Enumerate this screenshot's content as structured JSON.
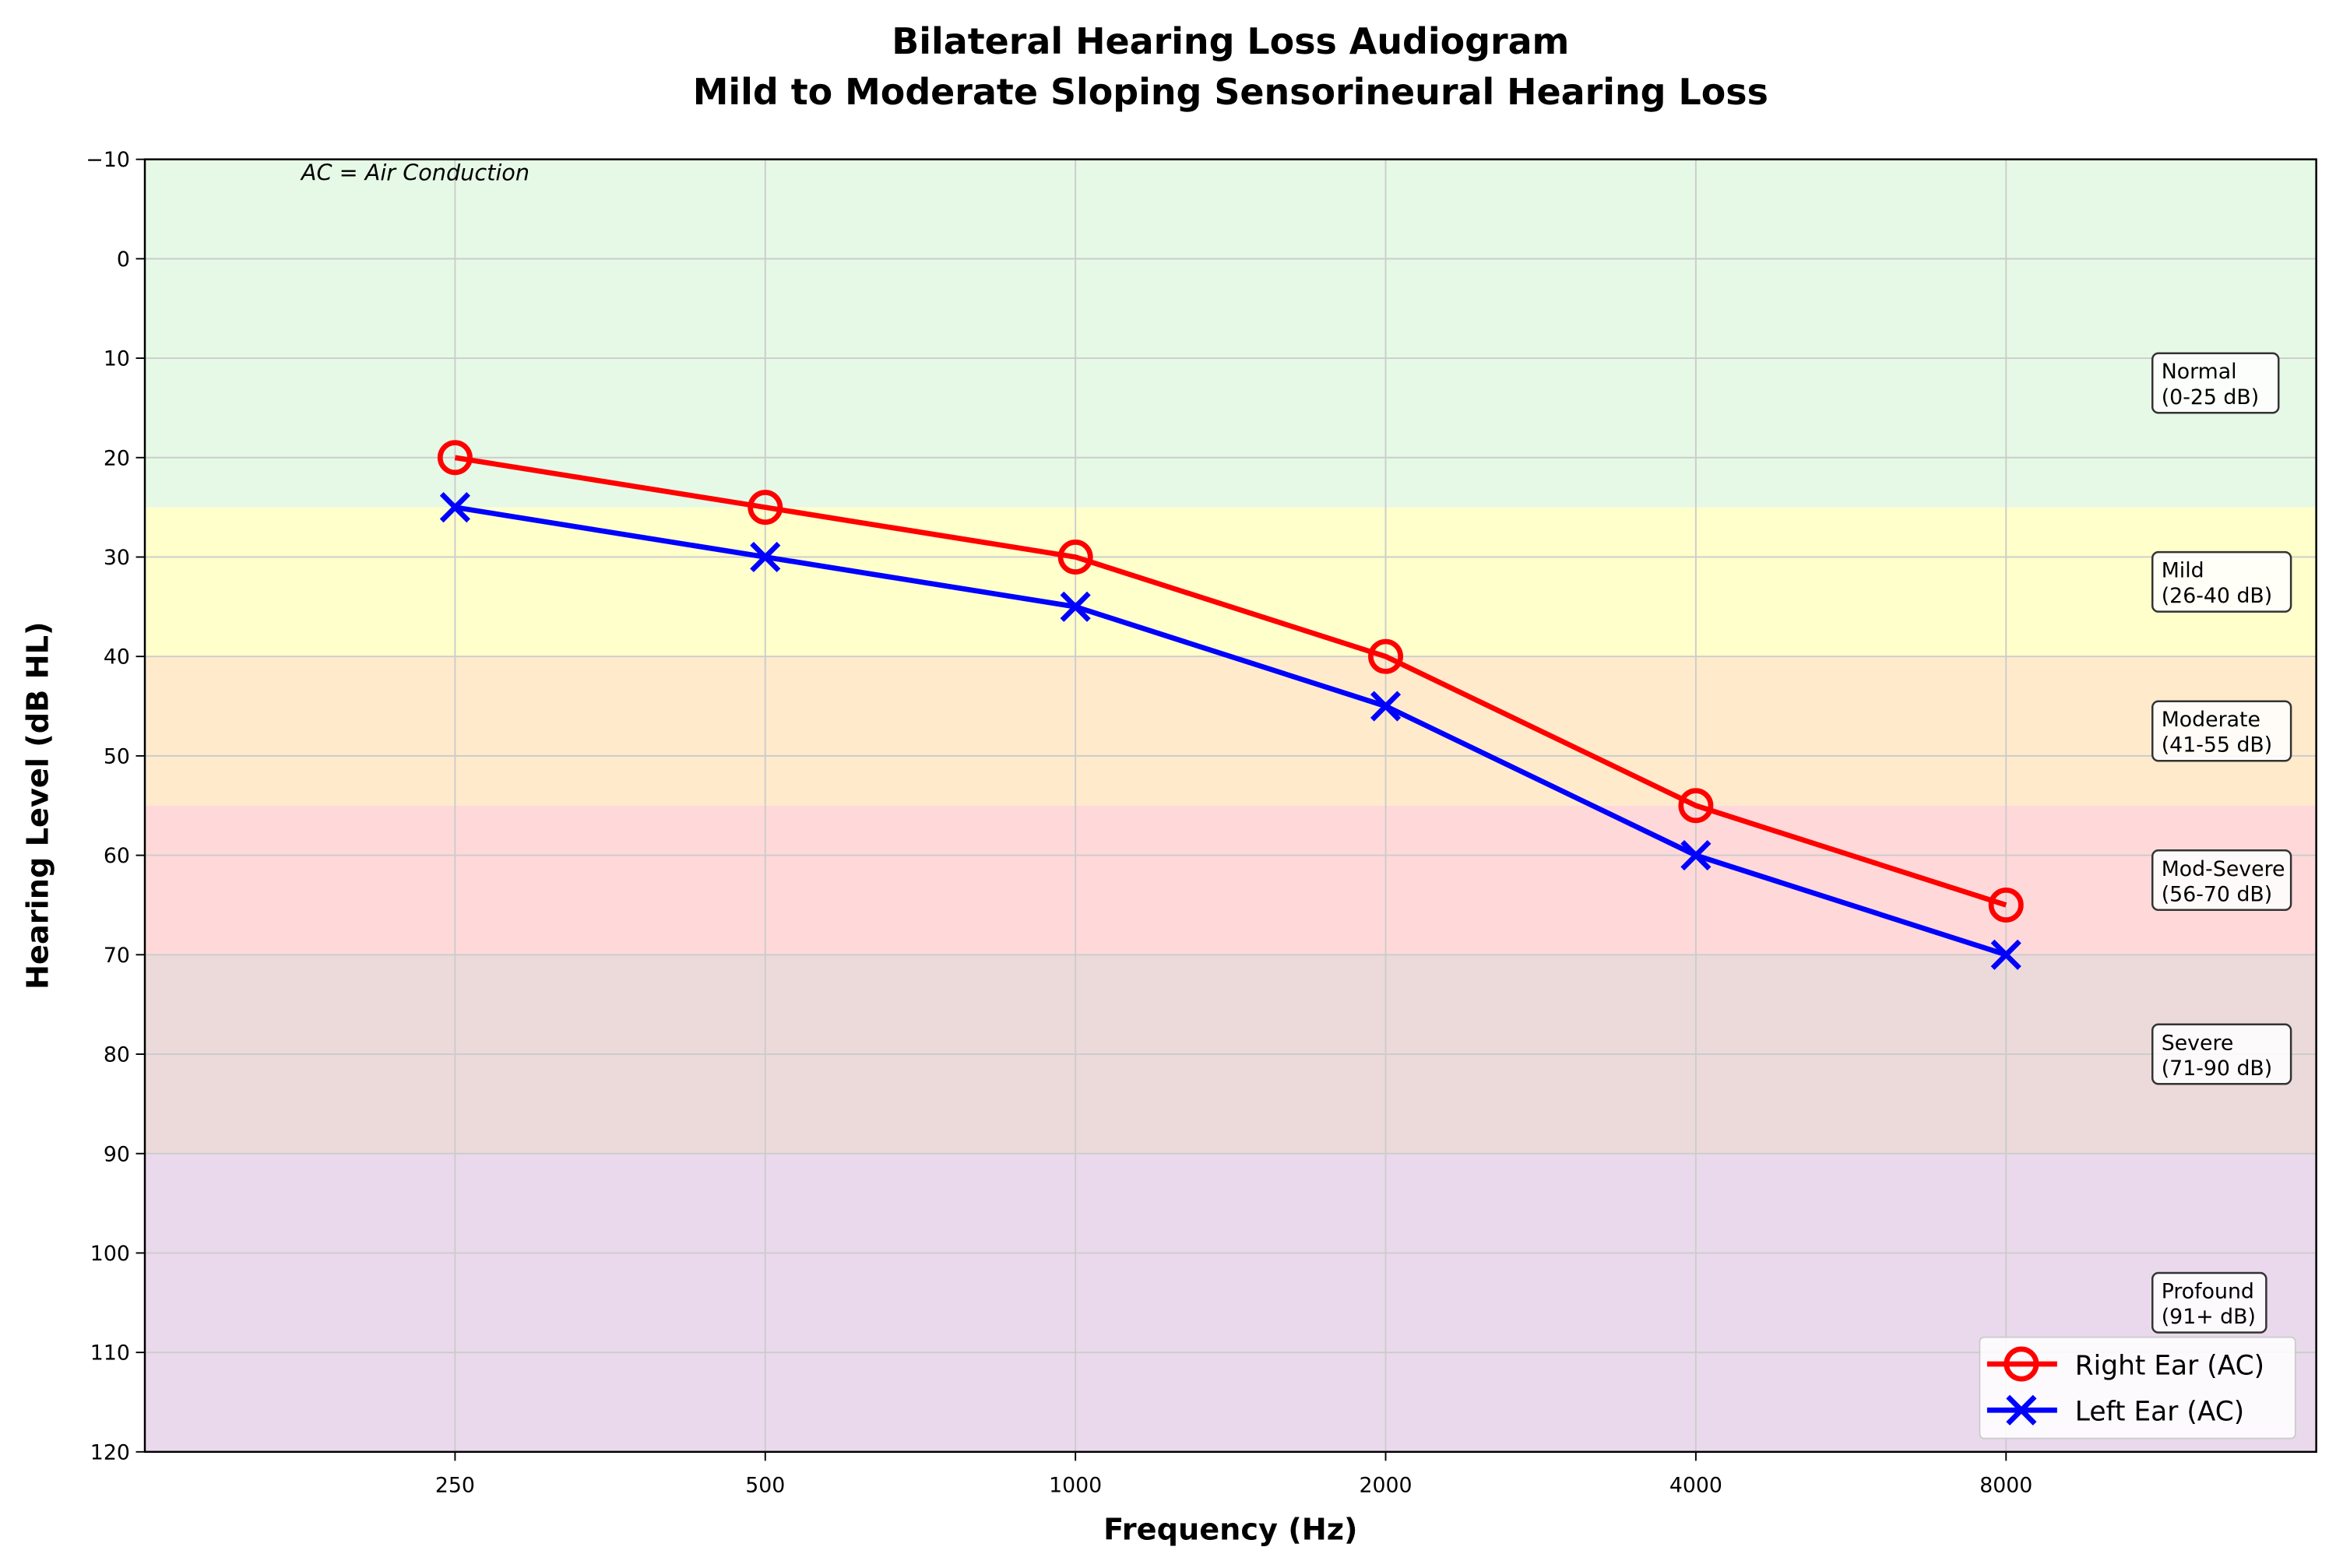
{
  "chart_data": {
    "type": "line",
    "title": "Bilateral Hearing Loss Audiogram",
    "subtitle": "Mild to Moderate Sloping Sensorineural Hearing Loss",
    "xlabel": "Frequency (Hz)",
    "ylabel": "Hearing Level (dB HL)",
    "categories": [
      "250",
      "500",
      "1000",
      "2000",
      "4000",
      "8000"
    ],
    "yticks": [
      -10,
      0,
      10,
      20,
      30,
      40,
      50,
      60,
      70,
      80,
      90,
      100,
      110,
      120
    ],
    "ylim": [
      -10,
      120
    ],
    "y_inverted": true,
    "grid": true,
    "series": [
      {
        "name": "Right Ear (AC)",
        "values": [
          20,
          25,
          30,
          40,
          55,
          65
        ],
        "color": "#ff0000",
        "marker": "circle"
      },
      {
        "name": "Left Ear (AC)",
        "values": [
          25,
          30,
          35,
          45,
          60,
          70
        ],
        "color": "#0000ff",
        "marker": "x"
      }
    ],
    "bands": [
      {
        "lines": [
          "Normal",
          "(0-25 dB)"
        ],
        "from": -10,
        "to": 25,
        "color": "#e6f9e6"
      },
      {
        "lines": [
          "Mild",
          "(26-40 dB)"
        ],
        "from": 25,
        "to": 40,
        "color": "#ffffcc"
      },
      {
        "lines": [
          "Moderate",
          "(41-55 dB)"
        ],
        "from": 40,
        "to": 55,
        "color": "#ffebcc"
      },
      {
        "lines": [
          "Mod-Severe",
          "(56-70 dB)"
        ],
        "from": 55,
        "to": 70,
        "color": "#ffd9d9"
      },
      {
        "lines": [
          "Severe",
          "(71-90 dB)"
        ],
        "from": 70,
        "to": 90,
        "color": "#ecdada"
      },
      {
        "lines": [
          "Profound",
          "(91+ dB)"
        ],
        "from": 90,
        "to": 120,
        "color": "#ead9ec"
      }
    ],
    "annotation": "AC = Air Conduction",
    "legend_position": "bottom-right"
  }
}
